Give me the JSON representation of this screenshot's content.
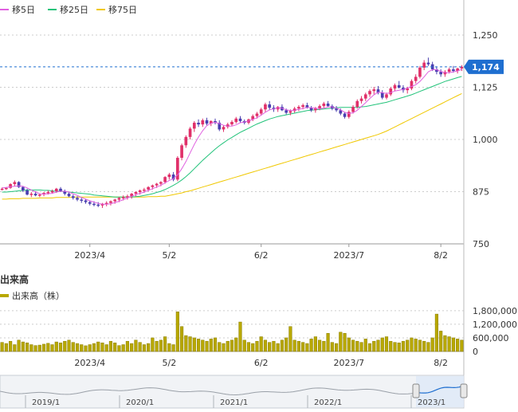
{
  "legend": {
    "ma5": {
      "label": "移5日",
      "color": "#e060e0"
    },
    "ma25": {
      "label": "移25日",
      "color": "#22c37a"
    },
    "ma75": {
      "label": "移75日",
      "color": "#f0c800"
    }
  },
  "volume_section": {
    "title": "出来高",
    "legend_label": "出来高（株）",
    "color": "#b8a800"
  },
  "colors": {
    "up": "#e0306a",
    "down": "#4a3fb0",
    "price_tag": "#1f6fd0",
    "grid": "#cccccc"
  },
  "chart_data": [
    {
      "type": "candlestick",
      "y_ticks": [
        750,
        875,
        1000,
        1125,
        1250
      ],
      "y_tick_labels": [
        "750",
        "875",
        "1,000",
        "1,125",
        "1,250"
      ],
      "ylim": [
        750,
        1250
      ],
      "x_ticks": [
        {
          "label": "2023/4",
          "index": 21
        },
        {
          "label": "5/2",
          "index": 40
        },
        {
          "label": "6/2",
          "index": 62
        },
        {
          "label": "2023/7",
          "index": 83
        },
        {
          "label": "8/2",
          "index": 105
        }
      ],
      "current_price": 1174,
      "current_price_label": "1,174",
      "ohlc": [
        [
          880,
          885,
          878,
          882
        ],
        [
          882,
          886,
          879,
          884
        ],
        [
          884,
          895,
          882,
          893
        ],
        [
          893,
          902,
          888,
          898
        ],
        [
          898,
          900,
          884,
          886
        ],
        [
          886,
          888,
          874,
          878
        ],
        [
          878,
          882,
          866,
          868
        ],
        [
          868,
          874,
          862,
          870
        ],
        [
          870,
          876,
          864,
          866
        ],
        [
          866,
          870,
          862,
          868
        ],
        [
          868,
          874,
          864,
          872
        ],
        [
          872,
          878,
          868,
          874
        ],
        [
          874,
          880,
          870,
          876
        ],
        [
          876,
          884,
          872,
          882
        ],
        [
          882,
          886,
          874,
          876
        ],
        [
          876,
          880,
          866,
          870
        ],
        [
          870,
          874,
          862,
          864
        ],
        [
          864,
          868,
          856,
          860
        ],
        [
          860,
          864,
          852,
          856
        ],
        [
          856,
          860,
          848,
          854
        ],
        [
          854,
          858,
          846,
          850
        ],
        [
          850,
          854,
          842,
          846
        ],
        [
          846,
          852,
          840,
          844
        ],
        [
          844,
          850,
          838,
          842
        ],
        [
          842,
          848,
          836,
          846
        ],
        [
          846,
          852,
          840,
          848
        ],
        [
          848,
          854,
          842,
          852
        ],
        [
          852,
          858,
          846,
          856
        ],
        [
          856,
          862,
          850,
          860
        ],
        [
          860,
          866,
          854,
          862
        ],
        [
          862,
          868,
          856,
          864
        ],
        [
          864,
          872,
          858,
          870
        ],
        [
          870,
          876,
          864,
          874
        ],
        [
          874,
          880,
          868,
          878
        ],
        [
          878,
          884,
          872,
          880
        ],
        [
          880,
          888,
          876,
          886
        ],
        [
          886,
          892,
          880,
          890
        ],
        [
          890,
          896,
          884,
          894
        ],
        [
          894,
          900,
          888,
          898
        ],
        [
          898,
          912,
          894,
          910
        ],
        [
          910,
          920,
          904,
          916
        ],
        [
          916,
          922,
          900,
          904
        ],
        [
          904,
          960,
          900,
          956
        ],
        [
          956,
          990,
          950,
          986
        ],
        [
          986,
          1010,
          980,
          1006
        ],
        [
          1006,
          1030,
          1000,
          1026
        ],
        [
          1026,
          1044,
          1018,
          1040
        ],
        [
          1040,
          1048,
          1030,
          1036
        ],
        [
          1036,
          1050,
          1030,
          1046
        ],
        [
          1046,
          1052,
          1034,
          1038
        ],
        [
          1038,
          1046,
          1032,
          1044
        ],
        [
          1044,
          1050,
          1036,
          1040
        ],
        [
          1040,
          1046,
          1020,
          1024
        ],
        [
          1024,
          1034,
          1018,
          1030
        ],
        [
          1030,
          1040,
          1026,
          1036
        ],
        [
          1036,
          1046,
          1032,
          1042
        ],
        [
          1042,
          1054,
          1038,
          1050
        ],
        [
          1050,
          1056,
          1040,
          1044
        ],
        [
          1044,
          1048,
          1036,
          1040
        ],
        [
          1040,
          1050,
          1036,
          1048
        ],
        [
          1048,
          1060,
          1044,
          1056
        ],
        [
          1056,
          1066,
          1050,
          1062
        ],
        [
          1062,
          1076,
          1058,
          1072
        ],
        [
          1072,
          1088,
          1066,
          1084
        ],
        [
          1084,
          1092,
          1070,
          1076
        ],
        [
          1076,
          1082,
          1066,
          1072
        ],
        [
          1072,
          1080,
          1066,
          1078
        ],
        [
          1078,
          1084,
          1068,
          1070
        ],
        [
          1070,
          1074,
          1060,
          1064
        ],
        [
          1064,
          1072,
          1058,
          1068
        ],
        [
          1068,
          1078,
          1064,
          1074
        ],
        [
          1074,
          1082,
          1068,
          1078
        ],
        [
          1078,
          1086,
          1072,
          1082
        ],
        [
          1082,
          1088,
          1074,
          1076
        ],
        [
          1076,
          1080,
          1066,
          1070
        ],
        [
          1070,
          1078,
          1064,
          1074
        ],
        [
          1074,
          1084,
          1070,
          1080
        ],
        [
          1080,
          1090,
          1076,
          1086
        ],
        [
          1086,
          1092,
          1078,
          1080
        ],
        [
          1080,
          1084,
          1070,
          1074
        ],
        [
          1074,
          1080,
          1066,
          1070
        ],
        [
          1070,
          1074,
          1058,
          1062
        ],
        [
          1062,
          1066,
          1050,
          1054
        ],
        [
          1054,
          1070,
          1050,
          1066
        ],
        [
          1066,
          1082,
          1062,
          1078
        ],
        [
          1078,
          1096,
          1074,
          1092
        ],
        [
          1092,
          1104,
          1086,
          1098
        ],
        [
          1098,
          1112,
          1092,
          1108
        ],
        [
          1108,
          1120,
          1102,
          1116
        ],
        [
          1116,
          1126,
          1108,
          1120
        ],
        [
          1120,
          1128,
          1108,
          1112
        ],
        [
          1112,
          1118,
          1096,
          1100
        ],
        [
          1100,
          1112,
          1096,
          1108
        ],
        [
          1108,
          1126,
          1104,
          1122
        ],
        [
          1122,
          1134,
          1116,
          1130
        ],
        [
          1130,
          1140,
          1122,
          1124
        ],
        [
          1124,
          1130,
          1112,
          1118
        ],
        [
          1118,
          1126,
          1110,
          1122
        ],
        [
          1122,
          1144,
          1118,
          1140
        ],
        [
          1140,
          1156,
          1134,
          1150
        ],
        [
          1150,
          1176,
          1146,
          1172
        ],
        [
          1172,
          1190,
          1166,
          1184
        ],
        [
          1184,
          1196,
          1176,
          1180
        ],
        [
          1180,
          1186,
          1164,
          1168
        ],
        [
          1168,
          1174,
          1156,
          1162
        ],
        [
          1162,
          1168,
          1150,
          1156
        ],
        [
          1156,
          1166,
          1150,
          1162
        ],
        [
          1162,
          1172,
          1158,
          1168
        ],
        [
          1168,
          1176,
          1160,
          1164
        ],
        [
          1164,
          1172,
          1158,
          1170
        ],
        [
          1170,
          1178,
          1164,
          1174
        ]
      ],
      "ma5": [
        884,
        885,
        887,
        888,
        889,
        888,
        884,
        879,
        874,
        870,
        869,
        870,
        871,
        874,
        876,
        876,
        874,
        870,
        866,
        861,
        857,
        853,
        850,
        847,
        845,
        845,
        846,
        849,
        852,
        856,
        860,
        864,
        868,
        871,
        874,
        878,
        882,
        886,
        890,
        896,
        902,
        906,
        915,
        930,
        947,
        968,
        988,
        1006,
        1021,
        1033,
        1039,
        1041,
        1038,
        1034,
        1032,
        1032,
        1035,
        1040,
        1042,
        1044,
        1048,
        1052,
        1058,
        1065,
        1071,
        1073,
        1076,
        1075,
        1071,
        1069,
        1070,
        1072,
        1074,
        1077,
        1076,
        1075,
        1074,
        1075,
        1078,
        1078,
        1075,
        1071,
        1065,
        1062,
        1064,
        1070,
        1079,
        1088,
        1098,
        1107,
        1113,
        1112,
        1110,
        1112,
        1116,
        1118,
        1120,
        1123,
        1127,
        1131,
        1139,
        1150,
        1162,
        1167,
        1167,
        1163,
        1160,
        1160,
        1162,
        1164,
        1168
      ],
      "ma25": [
        874,
        874,
        875,
        876,
        877,
        878,
        879,
        879,
        879,
        879,
        878,
        878,
        877,
        876,
        876,
        875,
        874,
        873,
        872,
        871,
        870,
        869,
        867,
        866,
        865,
        864,
        863,
        862,
        862,
        862,
        862,
        862,
        863,
        864,
        866,
        868,
        870,
        873,
        876,
        880,
        885,
        890,
        896,
        903,
        911,
        920,
        930,
        940,
        950,
        959,
        968,
        977,
        985,
        992,
        999,
        1005,
        1011,
        1017,
        1022,
        1027,
        1032,
        1037,
        1041,
        1045,
        1049,
        1052,
        1055,
        1057,
        1059,
        1061,
        1063,
        1065,
        1067,
        1069,
        1070,
        1071,
        1072,
        1073,
        1074,
        1075,
        1076,
        1077,
        1077,
        1077,
        1077,
        1077,
        1078,
        1079,
        1081,
        1083,
        1085,
        1087,
        1089,
        1092,
        1095,
        1098,
        1101,
        1104,
        1107,
        1111,
        1115,
        1119,
        1123,
        1127,
        1131,
        1135,
        1139,
        1142,
        1145,
        1148,
        1151
      ],
      "ma75": [
        857,
        857,
        858,
        858,
        858,
        859,
        859,
        859,
        859,
        860,
        860,
        860,
        860,
        861,
        861,
        861,
        861,
        862,
        862,
        862,
        862,
        862,
        862,
        862,
        862,
        862,
        862,
        862,
        862,
        862,
        862,
        862,
        862,
        862,
        862,
        863,
        863,
        863,
        864,
        864,
        866,
        868,
        870,
        872,
        875,
        877,
        880,
        883,
        886,
        889,
        892,
        895,
        898,
        901,
        904,
        907,
        910,
        913,
        916,
        919,
        922,
        925,
        928,
        931,
        934,
        937,
        940,
        943,
        946,
        949,
        952,
        955,
        958,
        961,
        964,
        967,
        970,
        973,
        976,
        979,
        982,
        985,
        988,
        991,
        994,
        997,
        1000,
        1003,
        1006,
        1009,
        1012,
        1016,
        1020,
        1025,
        1030,
        1035,
        1040,
        1045,
        1050,
        1055,
        1060,
        1065,
        1070,
        1075,
        1080,
        1085,
        1090,
        1095,
        1100,
        1105,
        1110
      ]
    },
    {
      "type": "bar",
      "y_ticks": [
        0,
        600000,
        1200000,
        1800000
      ],
      "y_tick_labels": [
        "0",
        "600,000",
        "1,200,000",
        "1,800,000"
      ],
      "ylim": [
        0,
        1900000
      ],
      "x_ticks": [
        {
          "label": "2023/4",
          "index": 21
        },
        {
          "label": "5/2",
          "index": 40
        },
        {
          "label": "6/2",
          "index": 62
        },
        {
          "label": "2023/7",
          "index": 83
        },
        {
          "label": "8/2",
          "index": 105
        }
      ],
      "values": [
        400000,
        350000,
        450000,
        300000,
        500000,
        420000,
        380000,
        300000,
        260000,
        280000,
        320000,
        360000,
        300000,
        420000,
        380000,
        450000,
        500000,
        400000,
        350000,
        300000,
        250000,
        300000,
        350000,
        420000,
        380000,
        300000,
        450000,
        380000,
        260000,
        300000,
        450000,
        350000,
        500000,
        400000,
        300000,
        350000,
        600000,
        450000,
        500000,
        650000,
        350000,
        300000,
        1750000,
        1100000,
        700000,
        650000,
        600000,
        550000,
        500000,
        450000,
        550000,
        600000,
        400000,
        350000,
        450000,
        500000,
        600000,
        1300000,
        500000,
        400000,
        350000,
        450000,
        650000,
        500000,
        400000,
        450000,
        350000,
        500000,
        600000,
        1100000,
        500000,
        450000,
        400000,
        350000,
        550000,
        650000,
        500000,
        450000,
        800000,
        400000,
        350000,
        850000,
        800000,
        600000,
        500000,
        450000,
        400000,
        550000,
        350000,
        450000,
        500000,
        600000,
        650000,
        450000,
        400000,
        380000,
        450000,
        500000,
        600000,
        550000,
        500000,
        450000,
        400000,
        600000,
        1650000,
        900000,
        700000,
        650000,
        600000,
        550000,
        500000
      ]
    }
  ],
  "navigator": {
    "labels": [
      "2019/1",
      "2020/1",
      "2021/1",
      "2022/1",
      "2023/1"
    ]
  }
}
